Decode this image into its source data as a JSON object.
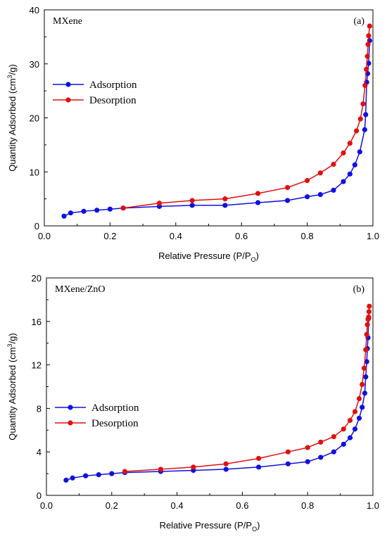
{
  "chart_data": [
    {
      "type": "line",
      "panel_label": "(a)",
      "inner_title": "MXene",
      "xlabel": "Relative Pressure (P/P",
      "xlabel_sub": "O",
      "xlabel_end": ")",
      "ylabel_pre": "Quantity Adsorbed (cm",
      "ylabel_sup": "3",
      "ylabel_post": "/g)",
      "xlim": [
        0.0,
        1.0
      ],
      "ylim": [
        0,
        40
      ],
      "xticks": [
        "0.0",
        "0.2",
        "0.4",
        "0.6",
        "0.8",
        "1.0"
      ],
      "yticks": [
        "0",
        "10",
        "20",
        "30",
        "40"
      ],
      "legend_position": "middle-left",
      "series": [
        {
          "name": "Adsorption",
          "color": "#1010e0",
          "x": [
            0.06,
            0.08,
            0.12,
            0.16,
            0.2,
            0.24,
            0.35,
            0.45,
            0.55,
            0.65,
            0.74,
            0.8,
            0.84,
            0.88,
            0.91,
            0.93,
            0.945,
            0.96,
            0.975,
            0.978,
            0.981,
            0.984,
            0.987,
            0.99
          ],
          "y": [
            1.8,
            2.4,
            2.7,
            2.9,
            3.1,
            3.3,
            3.6,
            3.8,
            3.8,
            4.3,
            4.7,
            5.4,
            5.8,
            6.6,
            8.2,
            9.6,
            11.3,
            13.7,
            17.8,
            20.6,
            26.6,
            28.2,
            30.1,
            34.3
          ]
        },
        {
          "name": "Desorption",
          "color": "#e01010",
          "x": [
            0.24,
            0.35,
            0.45,
            0.55,
            0.65,
            0.74,
            0.8,
            0.84,
            0.88,
            0.91,
            0.93,
            0.95,
            0.962,
            0.97,
            0.976,
            0.98,
            0.983,
            0.985,
            0.987,
            0.99
          ],
          "y": [
            3.3,
            4.2,
            4.7,
            5.0,
            6.0,
            7.1,
            8.4,
            9.8,
            11.4,
            13.5,
            15.3,
            17.6,
            19.8,
            22.6,
            26.0,
            29.0,
            31.4,
            33.6,
            35.2,
            37.0
          ]
        }
      ]
    },
    {
      "type": "line",
      "panel_label": "(b)",
      "inner_title": "MXene/ZnO",
      "xlabel": "Relative Pressure (P/P",
      "xlabel_sub": "O",
      "xlabel_end": ")",
      "ylabel_pre": "Quantity Adsorbed (cm",
      "ylabel_sup": "3",
      "ylabel_post": "/g)",
      "xlim": [
        0.0,
        1.0
      ],
      "ylim": [
        0,
        20
      ],
      "xticks": [
        "0.0",
        "0.2",
        "0.4",
        "0.6",
        "0.8",
        "1.0"
      ],
      "yticks": [
        "0",
        "4",
        "8",
        "12",
        "16",
        "20"
      ],
      "legend_position": "middle-left",
      "series": [
        {
          "name": "Adsorption",
          "color": "#1010e0",
          "x": [
            0.06,
            0.08,
            0.12,
            0.16,
            0.2,
            0.24,
            0.35,
            0.45,
            0.55,
            0.65,
            0.74,
            0.8,
            0.84,
            0.88,
            0.91,
            0.93,
            0.945,
            0.958,
            0.967,
            0.975,
            0.978,
            0.981,
            0.983,
            0.985,
            0.987
          ],
          "y": [
            1.4,
            1.6,
            1.8,
            1.9,
            2.0,
            2.1,
            2.2,
            2.3,
            2.4,
            2.6,
            2.9,
            3.1,
            3.5,
            4.0,
            4.7,
            5.3,
            6.1,
            7.1,
            8.1,
            9.4,
            10.9,
            12.3,
            13.5,
            14.5,
            16.3
          ]
        },
        {
          "name": "Desorption",
          "color": "#e01010",
          "x": [
            0.24,
            0.35,
            0.45,
            0.55,
            0.65,
            0.74,
            0.8,
            0.84,
            0.88,
            0.91,
            0.93,
            0.945,
            0.958,
            0.967,
            0.973,
            0.978,
            0.981,
            0.983,
            0.985,
            0.987,
            0.988,
            0.989
          ],
          "y": [
            2.2,
            2.4,
            2.6,
            2.9,
            3.4,
            4.0,
            4.4,
            4.9,
            5.4,
            6.1,
            6.9,
            7.7,
            8.9,
            10.2,
            11.7,
            13.4,
            14.8,
            15.7,
            16.2,
            16.4,
            16.9,
            17.4
          ]
        }
      ]
    }
  ]
}
